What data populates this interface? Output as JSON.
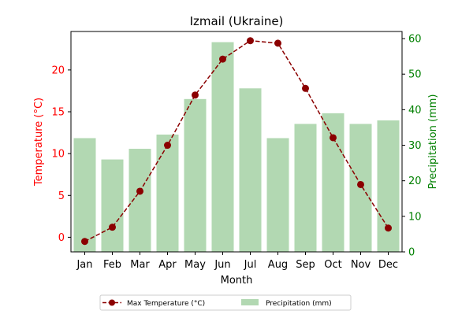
{
  "chart_data": {
    "type": "bar",
    "title": "Izmail (Ukraine)",
    "xlabel": "Month",
    "ylabel_left": "Temperature (°C)",
    "ylabel_right": "Precipitation (mm)",
    "categories": [
      "Jan",
      "Feb",
      "Mar",
      "Apr",
      "May",
      "Jun",
      "Jul",
      "Aug",
      "Sep",
      "Oct",
      "Nov",
      "Dec"
    ],
    "series": [
      {
        "name": "Max Temperature (°C)",
        "type": "line",
        "axis": "left",
        "color": "#8b0000",
        "line_style": "dashed",
        "marker": "circle",
        "values": [
          -0.5,
          1.2,
          5.5,
          11.0,
          17.0,
          21.3,
          23.5,
          23.2,
          17.8,
          11.9,
          6.3,
          1.1
        ]
      },
      {
        "name": "Precipitation (mm)",
        "type": "bar",
        "axis": "right",
        "color": "#b2d8b2",
        "values": [
          32,
          26,
          29,
          33,
          43,
          59,
          46,
          32,
          36,
          39,
          36,
          37
        ]
      }
    ],
    "ylim_left": [
      -1.75,
      24.6
    ],
    "ylim_right": [
      0,
      62
    ],
    "yticks_left": [
      0,
      5,
      10,
      15,
      20
    ],
    "yticks_right": [
      0,
      10,
      20,
      30,
      40,
      50,
      60
    ],
    "left_axis_color": "#ff0000",
    "right_axis_color": "#008000",
    "grid": false,
    "legend_placement": "bottom-center"
  }
}
